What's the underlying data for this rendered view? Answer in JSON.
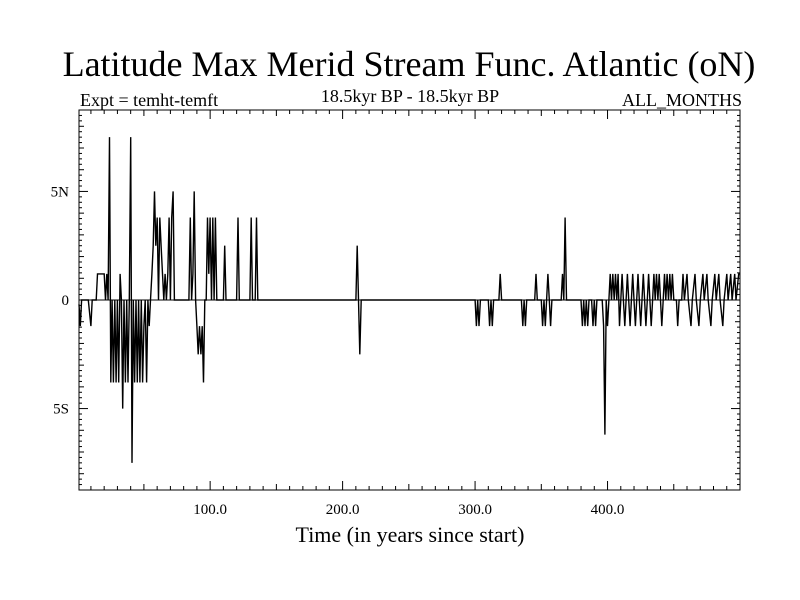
{
  "chart_data": {
    "type": "line",
    "title": "Latitude Max Merid Stream Func. Atlantic (oN)",
    "expt_label": "Expt = temht-temft",
    "period_label": "18.5kyr BP - 18.5kyr BP",
    "season_label": "ALL_MONTHS",
    "xlabel": "Time (in years since start)",
    "ylabel": "",
    "xlim": [
      1,
      500
    ],
    "ylim": [
      -8.75,
      8.75
    ],
    "x_ticks": [
      {
        "value": 100,
        "label": "100.0"
      },
      {
        "value": 200,
        "label": "200.0"
      },
      {
        "value": 300,
        "label": "300.0"
      },
      {
        "value": 400,
        "label": "400.0"
      }
    ],
    "y_ticks": [
      {
        "value": 5,
        "label": "5N"
      },
      {
        "value": 0,
        "label": "0"
      },
      {
        "value": -5,
        "label": "5S"
      }
    ],
    "series": [
      {
        "name": "Latitude Max Merid Stream Func",
        "points": [
          [
            1,
            -0.2
          ],
          [
            2,
            -1.2
          ],
          [
            3,
            0
          ],
          [
            8,
            0
          ],
          [
            10,
            -1.2
          ],
          [
            11,
            0
          ],
          [
            14,
            0
          ],
          [
            15,
            1.2
          ],
          [
            20,
            1.2
          ],
          [
            21,
            0
          ],
          [
            22,
            1.2
          ],
          [
            23,
            0
          ],
          [
            24,
            7.5
          ],
          [
            25,
            -3.8
          ],
          [
            26,
            0
          ],
          [
            27,
            -3.8
          ],
          [
            28,
            0
          ],
          [
            29,
            -3.8
          ],
          [
            30,
            0
          ],
          [
            31,
            -3.8
          ],
          [
            32,
            1.2
          ],
          [
            33,
            0
          ],
          [
            34,
            -5
          ],
          [
            35,
            0
          ],
          [
            36,
            -3.8
          ],
          [
            37,
            0
          ],
          [
            38,
            -3.8
          ],
          [
            39,
            0
          ],
          [
            40,
            7.5
          ],
          [
            41,
            -7.5
          ],
          [
            42,
            0
          ],
          [
            43,
            -3.8
          ],
          [
            44,
            0
          ],
          [
            45,
            -3.8
          ],
          [
            46,
            0
          ],
          [
            47,
            -3.8
          ],
          [
            48,
            0
          ],
          [
            49,
            -3.8
          ],
          [
            50,
            -1.2
          ],
          [
            51,
            0
          ],
          [
            52,
            -3.8
          ],
          [
            53,
            0
          ],
          [
            54,
            -1.2
          ],
          [
            55,
            0
          ],
          [
            56,
            1.2
          ],
          [
            57,
            2.5
          ],
          [
            58,
            5
          ],
          [
            59,
            2.5
          ],
          [
            60,
            3.8
          ],
          [
            61,
            0
          ],
          [
            62,
            3.8
          ],
          [
            63,
            2.5
          ],
          [
            64,
            1.2
          ],
          [
            65,
            0
          ],
          [
            66,
            1.2
          ],
          [
            67,
            0
          ],
          [
            68,
            1.2
          ],
          [
            69,
            3.8
          ],
          [
            70,
            0
          ],
          [
            71,
            3.8
          ],
          [
            72,
            5
          ],
          [
            73,
            0
          ],
          [
            74,
            0
          ],
          [
            84,
            0
          ],
          [
            85,
            3.8
          ],
          [
            86,
            0
          ],
          [
            87,
            1.2
          ],
          [
            88,
            5
          ],
          [
            89,
            0
          ],
          [
            90,
            -1.2
          ],
          [
            91,
            -2.5
          ],
          [
            92,
            -1.2
          ],
          [
            93,
            -2.5
          ],
          [
            94,
            -1.2
          ],
          [
            95,
            -3.8
          ],
          [
            96,
            0
          ],
          [
            97,
            0
          ],
          [
            98,
            3.8
          ],
          [
            99,
            1.2
          ],
          [
            100,
            3.8
          ],
          [
            101,
            0
          ],
          [
            102,
            3.8
          ],
          [
            103,
            0
          ],
          [
            104,
            3.8
          ],
          [
            105,
            0
          ],
          [
            110,
            0
          ],
          [
            111,
            2.5
          ],
          [
            112,
            0
          ],
          [
            120,
            0
          ],
          [
            121,
            3.8
          ],
          [
            122,
            0
          ],
          [
            130,
            0
          ],
          [
            131,
            3.8
          ],
          [
            132,
            0
          ],
          [
            134,
            0
          ],
          [
            135,
            3.8
          ],
          [
            136,
            0
          ],
          [
            210,
            0
          ],
          [
            211,
            2.5
          ],
          [
            212,
            0
          ],
          [
            213,
            -2.5
          ],
          [
            214,
            0
          ],
          [
            300,
            0
          ],
          [
            301,
            -1.2
          ],
          [
            302,
            0
          ],
          [
            303,
            -1.2
          ],
          [
            304,
            0
          ],
          [
            310,
            0
          ],
          [
            311,
            -1.2
          ],
          [
            312,
            0
          ],
          [
            313,
            -1.2
          ],
          [
            314,
            0
          ],
          [
            318,
            0
          ],
          [
            319,
            1.2
          ],
          [
            320,
            0
          ],
          [
            335,
            0
          ],
          [
            336,
            -1.2
          ],
          [
            337,
            0
          ],
          [
            338,
            -1.2
          ],
          [
            339,
            0
          ],
          [
            345,
            0
          ],
          [
            346,
            1.2
          ],
          [
            347,
            0
          ],
          [
            350,
            0
          ],
          [
            351,
            -1.2
          ],
          [
            352,
            0
          ],
          [
            353,
            -1.2
          ],
          [
            354,
            0
          ],
          [
            355,
            1.2
          ],
          [
            356,
            0
          ],
          [
            357,
            -1.2
          ],
          [
            358,
            0
          ],
          [
            365,
            0
          ],
          [
            366,
            1.2
          ],
          [
            367,
            0
          ],
          [
            368,
            3.8
          ],
          [
            369,
            0
          ],
          [
            372,
            0
          ],
          [
            373,
            0
          ],
          [
            380,
            0
          ],
          [
            381,
            -1.2
          ],
          [
            382,
            0
          ],
          [
            383,
            -1.2
          ],
          [
            384,
            0
          ],
          [
            385,
            -1.2
          ],
          [
            386,
            0
          ],
          [
            388,
            0
          ],
          [
            389,
            -1.2
          ],
          [
            390,
            0
          ],
          [
            391,
            -1.2
          ],
          [
            392,
            0
          ],
          [
            396,
            0
          ],
          [
            397,
            -1.2
          ],
          [
            398,
            -6.2
          ],
          [
            399,
            0
          ],
          [
            400,
            -1.2
          ],
          [
            401,
            0
          ],
          [
            402,
            1.2
          ],
          [
            403,
            0
          ],
          [
            404,
            1.2
          ],
          [
            405,
            0
          ],
          [
            406,
            1.2
          ],
          [
            407,
            0
          ],
          [
            408,
            1.2
          ],
          [
            409,
            -1.2
          ],
          [
            410,
            0
          ],
          [
            411,
            1.2
          ],
          [
            412,
            0
          ],
          [
            413,
            -1.2
          ],
          [
            414,
            0
          ],
          [
            415,
            1.2
          ],
          [
            416,
            0
          ],
          [
            417,
            -1.2
          ],
          [
            418,
            0
          ],
          [
            419,
            1.2
          ],
          [
            420,
            0
          ],
          [
            421,
            -1.2
          ],
          [
            422,
            0
          ],
          [
            423,
            1.2
          ],
          [
            424,
            0
          ],
          [
            425,
            -1.2
          ],
          [
            426,
            0
          ],
          [
            427,
            1.2
          ],
          [
            428,
            0
          ],
          [
            429,
            -1.2
          ],
          [
            430,
            0
          ],
          [
            431,
            1.2
          ],
          [
            432,
            0
          ],
          [
            433,
            -1.2
          ],
          [
            434,
            0
          ],
          [
            435,
            1.2
          ],
          [
            436,
            0
          ],
          [
            437,
            1.2
          ],
          [
            438,
            0
          ],
          [
            439,
            1.2
          ],
          [
            440,
            0
          ],
          [
            441,
            -1.2
          ],
          [
            442,
            0
          ],
          [
            443,
            1.2
          ],
          [
            444,
            0
          ],
          [
            445,
            1.2
          ],
          [
            446,
            0
          ],
          [
            447,
            1.2
          ],
          [
            448,
            0
          ],
          [
            449,
            1.2
          ],
          [
            450,
            0
          ],
          [
            452,
            0
          ],
          [
            453,
            -1.2
          ],
          [
            454,
            0
          ],
          [
            456,
            0
          ],
          [
            457,
            1.2
          ],
          [
            458,
            0
          ],
          [
            460,
            1.2
          ],
          [
            461,
            0
          ],
          [
            463,
            -1.2
          ],
          [
            464,
            0
          ],
          [
            466,
            1.2
          ],
          [
            467,
            0
          ],
          [
            469,
            -1.2
          ],
          [
            470,
            0
          ],
          [
            472,
            1.2
          ],
          [
            473,
            0
          ],
          [
            475,
            1.2
          ],
          [
            476,
            0
          ],
          [
            478,
            -1.2
          ],
          [
            479,
            0
          ],
          [
            481,
            1.2
          ],
          [
            482,
            0
          ],
          [
            484,
            1.2
          ],
          [
            485,
            0
          ],
          [
            487,
            -1.2
          ],
          [
            488,
            0
          ],
          [
            490,
            1.2
          ],
          [
            491,
            0
          ],
          [
            493,
            1.2
          ],
          [
            494,
            0
          ],
          [
            496,
            1.2
          ],
          [
            497,
            0
          ],
          [
            499,
            1.2
          ],
          [
            500,
            1.2
          ]
        ]
      }
    ]
  }
}
